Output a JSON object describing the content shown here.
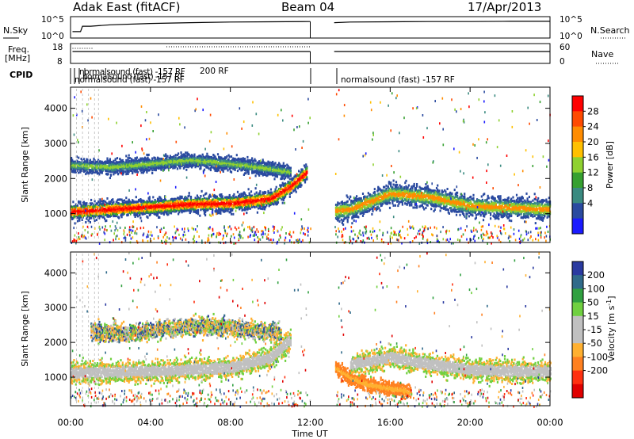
{
  "header": {
    "station": "Adak East (fitACF)",
    "beam": "Beam 04",
    "date": "17/Apr/2013"
  },
  "strip_nsky": {
    "left_label": "N.Sky",
    "right_label": "N.Search",
    "left_ticks": [
      "10^5",
      "10^0"
    ],
    "right_ticks": [
      "10^5",
      "10^0"
    ]
  },
  "strip_freq": {
    "left_label_line1": "Freq.",
    "left_label_line2": "[MHz]",
    "right_label": "Nave",
    "left_ticks": [
      "18",
      "8"
    ],
    "right_ticks": [
      "60",
      "0"
    ]
  },
  "strip_cpid": {
    "label": "CPID",
    "overlap_text": "normalsound (fast) -157 RF",
    "overlap_text2": "normalsound (fast) -157 RF",
    "overlap_text3": "normalsound (fast) -157 RF",
    "overlap_text4": "200 RF",
    "late_text": "normalsound (fast) -157 RF"
  },
  "power_panel": {
    "ylabel": "Slant Range [km]",
    "yticks": [
      "4000",
      "3000",
      "2000",
      "1000"
    ],
    "colorbar_label": "Power [dB]",
    "colorbar_ticks": [
      "28",
      "24",
      "20",
      "16",
      "12",
      "8",
      "4"
    ],
    "colorbar_colors": [
      "#ff0000",
      "#ff4a00",
      "#ff8c00",
      "#ffc000",
      "#8fd130",
      "#36a030",
      "#3a8a80",
      "#2a4aa0",
      "#1a1aff"
    ]
  },
  "velocity_panel": {
    "ylabel": "Slant Range [km]",
    "yticks": [
      "4000",
      "3000",
      "2000",
      "1000"
    ],
    "colorbar_label": "Velocity [m s",
    "colorbar_exp": "-1",
    "colorbar_end": "]",
    "colorbar_ticks": [
      "200",
      "100",
      "50",
      "15",
      "-15",
      "-50",
      "-100",
      "-200"
    ],
    "colorbar_colors": [
      "#2a3aa0",
      "#306a8a",
      "#30a040",
      "#70d040",
      "#c0c0c0",
      "#c0c0c0",
      "#ffb030",
      "#ff8020",
      "#ff3010",
      "#e00000"
    ]
  },
  "xaxis": {
    "xlabel": "Time UT",
    "ticks": [
      "00:00",
      "04:00",
      "08:00",
      "12:00",
      "16:00",
      "20:00",
      "00:00"
    ]
  },
  "chart_data": [
    {
      "type": "line",
      "title": "N.Sky / N.Search",
      "x_range": [
        0,
        24
      ],
      "segments": [
        {
          "x": [
            0.1,
            0.5,
            0.6,
            1.0,
            2.0,
            4.0,
            6.0,
            8.0,
            10.0,
            12.0
          ],
          "y": [
            0.3,
            0.3,
            0.55,
            0.55,
            0.62,
            0.68,
            0.72,
            0.75,
            0.76,
            0.77
          ]
        },
        {
          "x": [
            13.2,
            14.0,
            16.0,
            18.0,
            20.0,
            22.0,
            24.0
          ],
          "y": [
            0.72,
            0.75,
            0.76,
            0.77,
            0.77,
            0.78,
            0.78
          ]
        }
      ]
    },
    {
      "type": "line",
      "title": "Freq. / Nave",
      "x_range": [
        0,
        24
      ],
      "segments": [
        {
          "x": [
            0.1,
            12.0
          ],
          "y": [
            0.6,
            0.6
          ]
        },
        {
          "x": [
            13.2,
            24.0
          ],
          "y": [
            0.6,
            0.6
          ]
        }
      ]
    },
    {
      "type": "heatmap",
      "title": "Power",
      "xlabel": "Time UT",
      "ylabel": "Slant Range [km]",
      "x_range": [
        0,
        24
      ],
      "y_range": [
        180,
        4600
      ],
      "gap": [
        12.0,
        13.2
      ],
      "bands": [
        {
          "x": [
            0,
            2,
            4,
            6,
            8,
            10,
            11,
            11.8
          ],
          "y_center": [
            1080,
            1150,
            1220,
            1300,
            1320,
            1450,
            1800,
            2200
          ],
          "width": 250,
          "color_level": "high"
        },
        {
          "x": [
            0,
            2,
            4,
            6,
            8,
            10,
            11
          ],
          "y_center": [
            2400,
            2350,
            2450,
            2550,
            2450,
            2300,
            2200
          ],
          "width": 200,
          "color_level": "low"
        },
        {
          "x": [
            13.2,
            14,
            16,
            18,
            20,
            22,
            24
          ],
          "y_center": [
            1100,
            1150,
            1600,
            1500,
            1250,
            1200,
            1150
          ],
          "width": 300,
          "color_level": "mid"
        }
      ]
    },
    {
      "type": "heatmap",
      "title": "Velocity",
      "xlabel": "Time UT",
      "ylabel": "Slant Range [km]",
      "x_range": [
        0,
        24
      ],
      "y_range": [
        180,
        4600
      ],
      "gap": [
        12.0,
        13.2
      ],
      "bands": [
        {
          "x": [
            0,
            2,
            4,
            6,
            8,
            10,
            11
          ],
          "y_center": [
            1150,
            1180,
            1200,
            1250,
            1300,
            1600,
            2100
          ],
          "width": 300,
          "color_level": "zero"
        },
        {
          "x": [
            1,
            3,
            5,
            7,
            9,
            10.5
          ],
          "y_center": [
            2350,
            2300,
            2450,
            2500,
            2400,
            2300
          ],
          "width": 250,
          "color_level": "mixed"
        },
        {
          "x": [
            13.2,
            14,
            15,
            16,
            17
          ],
          "y_center": [
            1300,
            1000,
            800,
            700,
            600
          ],
          "width": 200,
          "color_level": "negative"
        },
        {
          "x": [
            14,
            16,
            18,
            20,
            22,
            24
          ],
          "y_center": [
            1400,
            1600,
            1400,
            1250,
            1200,
            1200
          ],
          "width": 300,
          "color_level": "zero"
        }
      ]
    }
  ]
}
